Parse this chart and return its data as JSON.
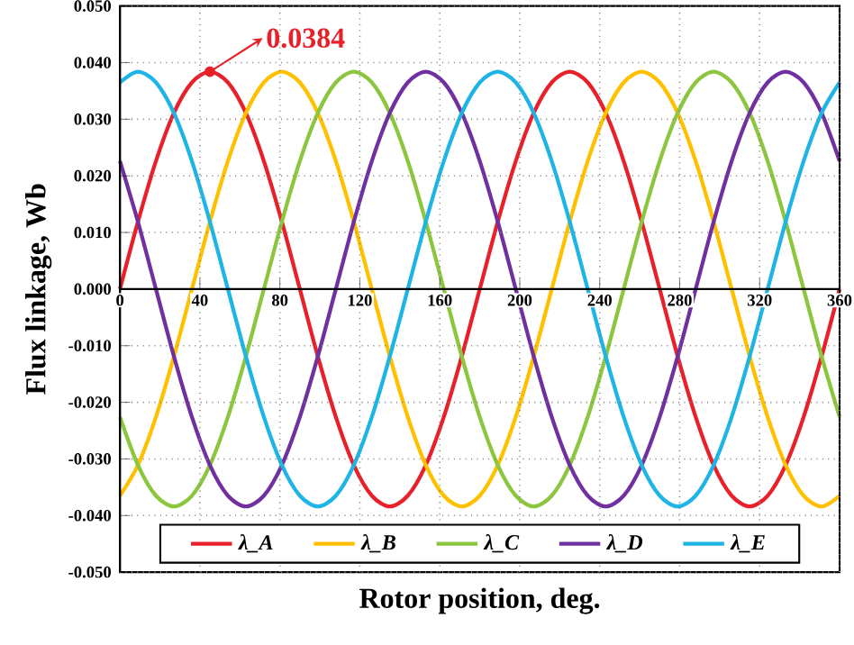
{
  "chart_data": {
    "type": "line",
    "xlabel": "Rotor position, deg.",
    "ylabel": "Flux linkage, Wb",
    "x": [
      0,
      9,
      18,
      27,
      36,
      45,
      54,
      63,
      72,
      81,
      90,
      99,
      108,
      117,
      126,
      135,
      144,
      153,
      162,
      171,
      180,
      189,
      198,
      207,
      216,
      225,
      234,
      243,
      252,
      261,
      270,
      279,
      288,
      297,
      306,
      315,
      324,
      333,
      342,
      351,
      360
    ],
    "series": [
      {
        "name": "λ_A",
        "color": "#e8202a",
        "values": [
          0,
          0.0119,
          0.0226,
          0.0311,
          0.0365,
          0.0384,
          0.0365,
          0.0311,
          0.0226,
          0.0119,
          0,
          -0.0119,
          -0.0226,
          -0.0311,
          -0.0365,
          -0.0384,
          -0.0365,
          -0.0311,
          -0.0226,
          -0.0119,
          0,
          0.0119,
          0.0226,
          0.0311,
          0.0365,
          0.0384,
          0.0365,
          0.0311,
          0.0226,
          0.0119,
          0,
          -0.0119,
          -0.0226,
          -0.0311,
          -0.0365,
          -0.0384,
          -0.0365,
          -0.0311,
          -0.0226,
          -0.0119,
          0
        ]
      },
      {
        "name": "λ_B",
        "color": "#ffc000",
        "values": [
          -0.0365,
          -0.0311,
          -0.0226,
          -0.0119,
          0,
          0.0119,
          0.0226,
          0.0311,
          0.0365,
          0.0384,
          0.0365,
          0.0311,
          0.0226,
          0.0119,
          0,
          -0.0119,
          -0.0226,
          -0.0311,
          -0.0365,
          -0.0384,
          -0.0365,
          -0.0311,
          -0.0226,
          -0.0119,
          0,
          0.0119,
          0.0226,
          0.0311,
          0.0365,
          0.0384,
          0.0365,
          0.0311,
          0.0226,
          0.0119,
          0,
          -0.0119,
          -0.0226,
          -0.0311,
          -0.0365,
          -0.0384,
          -0.0365
        ]
      },
      {
        "name": "λ_C",
        "color": "#8cc63f",
        "values": [
          -0.0226,
          -0.0311,
          -0.0365,
          -0.0384,
          -0.0365,
          -0.0311,
          -0.0226,
          -0.0119,
          0,
          0.0119,
          0.0226,
          0.0311,
          0.0365,
          0.0384,
          0.0365,
          0.0311,
          0.0226,
          0.0119,
          0,
          -0.0119,
          -0.0226,
          -0.0311,
          -0.0365,
          -0.0384,
          -0.0365,
          -0.0311,
          -0.0226,
          -0.0119,
          0,
          0.0119,
          0.0226,
          0.0311,
          0.0365,
          0.0384,
          0.0365,
          0.0311,
          0.0226,
          0.0119,
          0,
          -0.0119,
          -0.0226
        ]
      },
      {
        "name": "λ_D",
        "color": "#7030a0",
        "values": [
          0.0226,
          0.0119,
          0,
          -0.0119,
          -0.0226,
          -0.0311,
          -0.0365,
          -0.0384,
          -0.0365,
          -0.0311,
          -0.0226,
          -0.0119,
          0,
          0.0119,
          0.0226,
          0.0311,
          0.0365,
          0.0384,
          0.0365,
          0.0311,
          0.0226,
          0.0119,
          0,
          -0.0119,
          -0.0226,
          -0.0311,
          -0.0365,
          -0.0384,
          -0.0365,
          -0.0311,
          -0.0226,
          -0.0119,
          0,
          0.0119,
          0.0226,
          0.0311,
          0.0365,
          0.0384,
          0.0365,
          0.0311,
          0.0226
        ]
      },
      {
        "name": "λ_E",
        "color": "#1fb4e6",
        "values": [
          0.0365,
          0.0384,
          0.0365,
          0.0311,
          0.0226,
          0.0119,
          0,
          -0.0119,
          -0.0226,
          -0.0311,
          -0.0365,
          -0.0384,
          -0.0365,
          -0.0311,
          -0.0226,
          -0.0119,
          0,
          0.0119,
          0.0226,
          0.0311,
          0.0365,
          0.0384,
          0.0365,
          0.0311,
          0.0226,
          0.0119,
          0,
          -0.0119,
          -0.0226,
          -0.0311,
          -0.0365,
          -0.0384,
          -0.0365,
          -0.0311,
          -0.0226,
          -0.0119,
          0,
          0.0119,
          0.0226,
          0.0311,
          0.0365
        ]
      }
    ],
    "xlim": [
      0,
      360
    ],
    "xticks": [
      0,
      40,
      80,
      120,
      160,
      200,
      240,
      280,
      320,
      360
    ],
    "ylim": [
      -0.05,
      0.05
    ],
    "yticks": [
      {
        "value": -0.05,
        "label": "-0.050"
      },
      {
        "value": -0.04,
        "label": "-0.040"
      },
      {
        "value": -0.03,
        "label": "-0.030"
      },
      {
        "value": -0.02,
        "label": "-0.020"
      },
      {
        "value": -0.01,
        "label": "-0.010"
      },
      {
        "value": 0,
        "label": "0.000"
      },
      {
        "value": 0.01,
        "label": "0.010"
      },
      {
        "value": 0.02,
        "label": "0.020"
      },
      {
        "value": 0.03,
        "label": "0.030"
      },
      {
        "value": 0.04,
        "label": "0.040"
      },
      {
        "value": 0.05,
        "label": "0.050"
      }
    ],
    "annotations": [
      {
        "text": "0.0384",
        "x": 45,
        "y": 0.0384
      }
    ],
    "grid": true,
    "legend": "bottom",
    "marker": "none",
    "line_style": "solid"
  }
}
